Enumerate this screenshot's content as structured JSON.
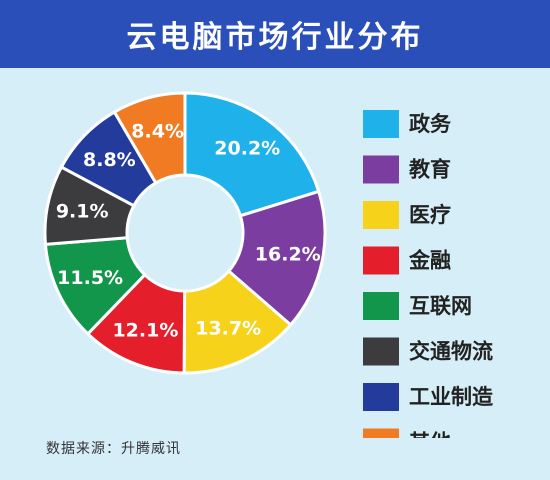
{
  "header": {
    "title": "云电脑市场行业分布"
  },
  "footer": {
    "source": "数据来源：升腾威讯"
  },
  "chart_data": {
    "type": "pie",
    "title": "云电脑市场行业分布",
    "legend": "right",
    "categories": [
      "政务",
      "教育",
      "医疗",
      "金融",
      "互联网",
      "交通物流",
      "工业制造",
      "其他"
    ],
    "values": [
      20.2,
      16.2,
      13.7,
      12.1,
      11.5,
      9.1,
      8.8,
      8.4
    ],
    "labels": [
      "20.2%",
      "16.2%",
      "13.7%",
      "12.1%",
      "11.5%",
      "9.1%",
      "8.8%",
      "8.4%"
    ],
    "colors": [
      "#1fb1ea",
      "#7b3ea0",
      "#f6d21a",
      "#e41e2a",
      "#12964b",
      "#3c3c3e",
      "#233c9c",
      "#f07b22"
    ]
  }
}
